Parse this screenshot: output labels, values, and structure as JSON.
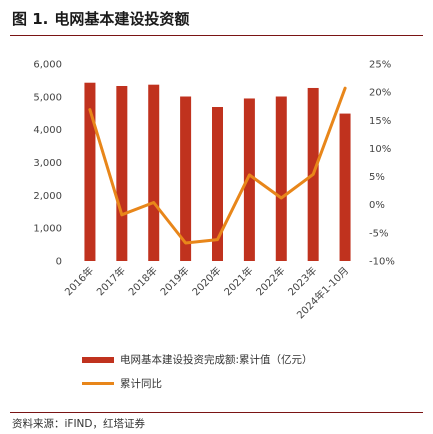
{
  "figure": {
    "number": "图 1.",
    "title": "电网基本建设投资额",
    "source": "资料来源：iFIND，红塔证券"
  },
  "colors": {
    "bar": "#c0321e",
    "line": "#e8861a",
    "rule": "#7a1414"
  },
  "chart_data": {
    "type": "bar",
    "categories": [
      "2016年",
      "2017年",
      "2018年",
      "2019年",
      "2020年",
      "2021年",
      "2022年",
      "2023年",
      "2024年1-10月"
    ],
    "series": [
      {
        "name": "电网基本建设投资完成额:累计值（亿元）",
        "type": "bar",
        "axis": "left",
        "values": [
          5430,
          5330,
          5370,
          5010,
          4690,
          4950,
          5010,
          5270,
          4490
        ]
      },
      {
        "name": "累计同比",
        "type": "line",
        "axis": "right",
        "values": [
          16.9,
          -1.8,
          0.4,
          -6.8,
          -6.2,
          5.3,
          1.2,
          5.4,
          20.7
        ]
      }
    ],
    "y_left": {
      "ylim": [
        0,
        6000
      ],
      "ticks": [
        "0",
        "1,000",
        "2,000",
        "3,000",
        "4,000",
        "5,000",
        "6,000"
      ],
      "tick_values": [
        0,
        1000,
        2000,
        3000,
        4000,
        5000,
        6000
      ]
    },
    "y_right": {
      "ylim": [
        -10,
        25
      ],
      "ticks": [
        "-10%",
        "-5%",
        "0%",
        "5%",
        "10%",
        "15%",
        "20%",
        "25%"
      ],
      "tick_values": [
        -10,
        -5,
        0,
        5,
        10,
        15,
        20,
        25
      ]
    },
    "grid": false,
    "legend_position": "bottom"
  }
}
